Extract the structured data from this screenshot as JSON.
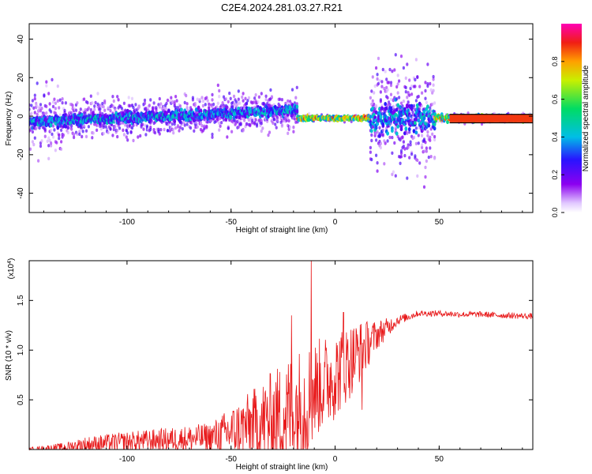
{
  "figure": {
    "title": "C2E4.2024.281.03.27.R21"
  },
  "chart_data": [
    {
      "type": "heatmap",
      "xlabel": "Height of straight line (km)",
      "ylabel": "Frequency (Hz)",
      "xlim": [
        -147,
        95
      ],
      "ylim": [
        -50,
        48
      ],
      "x_ticks": [
        "-100",
        "-50",
        "0",
        "50"
      ],
      "x_tick_values": [
        -100,
        -50,
        0,
        50
      ],
      "y_ticks": [
        "-40",
        "-20",
        "0",
        "20",
        "40"
      ],
      "y_tick_values": [
        -40,
        -20,
        0,
        20,
        40
      ],
      "colorbar": {
        "label": "Normalized spectral amplitude",
        "range": [
          0,
          1
        ],
        "ticks": [
          "0.0",
          "0.2",
          "0.4",
          "0.6",
          "0.8"
        ],
        "tick_values": [
          0.0,
          0.2,
          0.4,
          0.6,
          0.8
        ],
        "colormap": "rainbow (white-violet-blue-cyan-green-yellow-red-magenta)"
      },
      "regions": [
        {
          "x_range": [
            -147,
            -18
          ],
          "center_freq": [
            -3,
            3
          ],
          "freq_spread": 12,
          "peak_amplitude": 0.5
        },
        {
          "x_range": [
            -18,
            17
          ],
          "center_freq": [
            -1,
            -1
          ],
          "freq_spread": 2,
          "peak_amplitude": 0.95
        },
        {
          "x_range": [
            17,
            48
          ],
          "center_freq": [
            -1,
            -1
          ],
          "freq_spread": 35,
          "peak_amplitude": 0.5
        },
        {
          "x_range": [
            48,
            95
          ],
          "center_freq": [
            -1,
            -1
          ],
          "freq_spread": 3,
          "peak_amplitude": 0.9
        }
      ],
      "grid": false
    },
    {
      "type": "line",
      "xlabel": "Height of straight line (km)",
      "ylabel": "SNR (10 * v/v)",
      "y_multiplier_label": "(x10",
      "y_multiplier_exponent": "4",
      "y_multiplier_suffix": ")",
      "xlim": [
        -147,
        95
      ],
      "ylim": [
        0,
        1.9
      ],
      "x_ticks": [
        "-100",
        "-50",
        "0",
        "50"
      ],
      "x_tick_values": [
        -100,
        -50,
        0,
        50
      ],
      "y_ticks": [
        "0.5",
        "1.0",
        "1.5"
      ],
      "y_tick_values": [
        0.5,
        1.0,
        1.5
      ],
      "series": [
        {
          "color": "#e8191a",
          "envelope": {
            "x": [
              -147,
              -130,
              -120,
              -100,
              -80,
              -60,
              -50,
              -40,
              -30,
              -20,
              -12,
              -10,
              0,
              10,
              20,
              30,
              40,
              50,
              60,
              70,
              80,
              95
            ],
            "base": [
              0.0,
              0.02,
              0.05,
              0.08,
              0.1,
              0.12,
              0.18,
              0.25,
              0.3,
              0.4,
              0.5,
              0.6,
              0.75,
              0.95,
              1.15,
              1.3,
              1.37,
              1.37,
              1.36,
              1.36,
              1.35,
              1.34
            ],
            "noise": [
              0.02,
              0.05,
              0.08,
              0.1,
              0.12,
              0.15,
              0.25,
              0.35,
              0.5,
              0.6,
              0.6,
              0.5,
              0.45,
              0.35,
              0.15,
              0.05,
              0.03,
              0.03,
              0.03,
              0.03,
              0.03,
              0.03
            ]
          },
          "spikes": [
            {
              "x": -11.5,
              "value": 1.9
            },
            {
              "x": -21,
              "value": 1.35
            },
            {
              "x": 4,
              "value": 1.38
            },
            {
              "x": 13,
              "value": 0.4
            }
          ]
        }
      ],
      "grid": false
    }
  ]
}
